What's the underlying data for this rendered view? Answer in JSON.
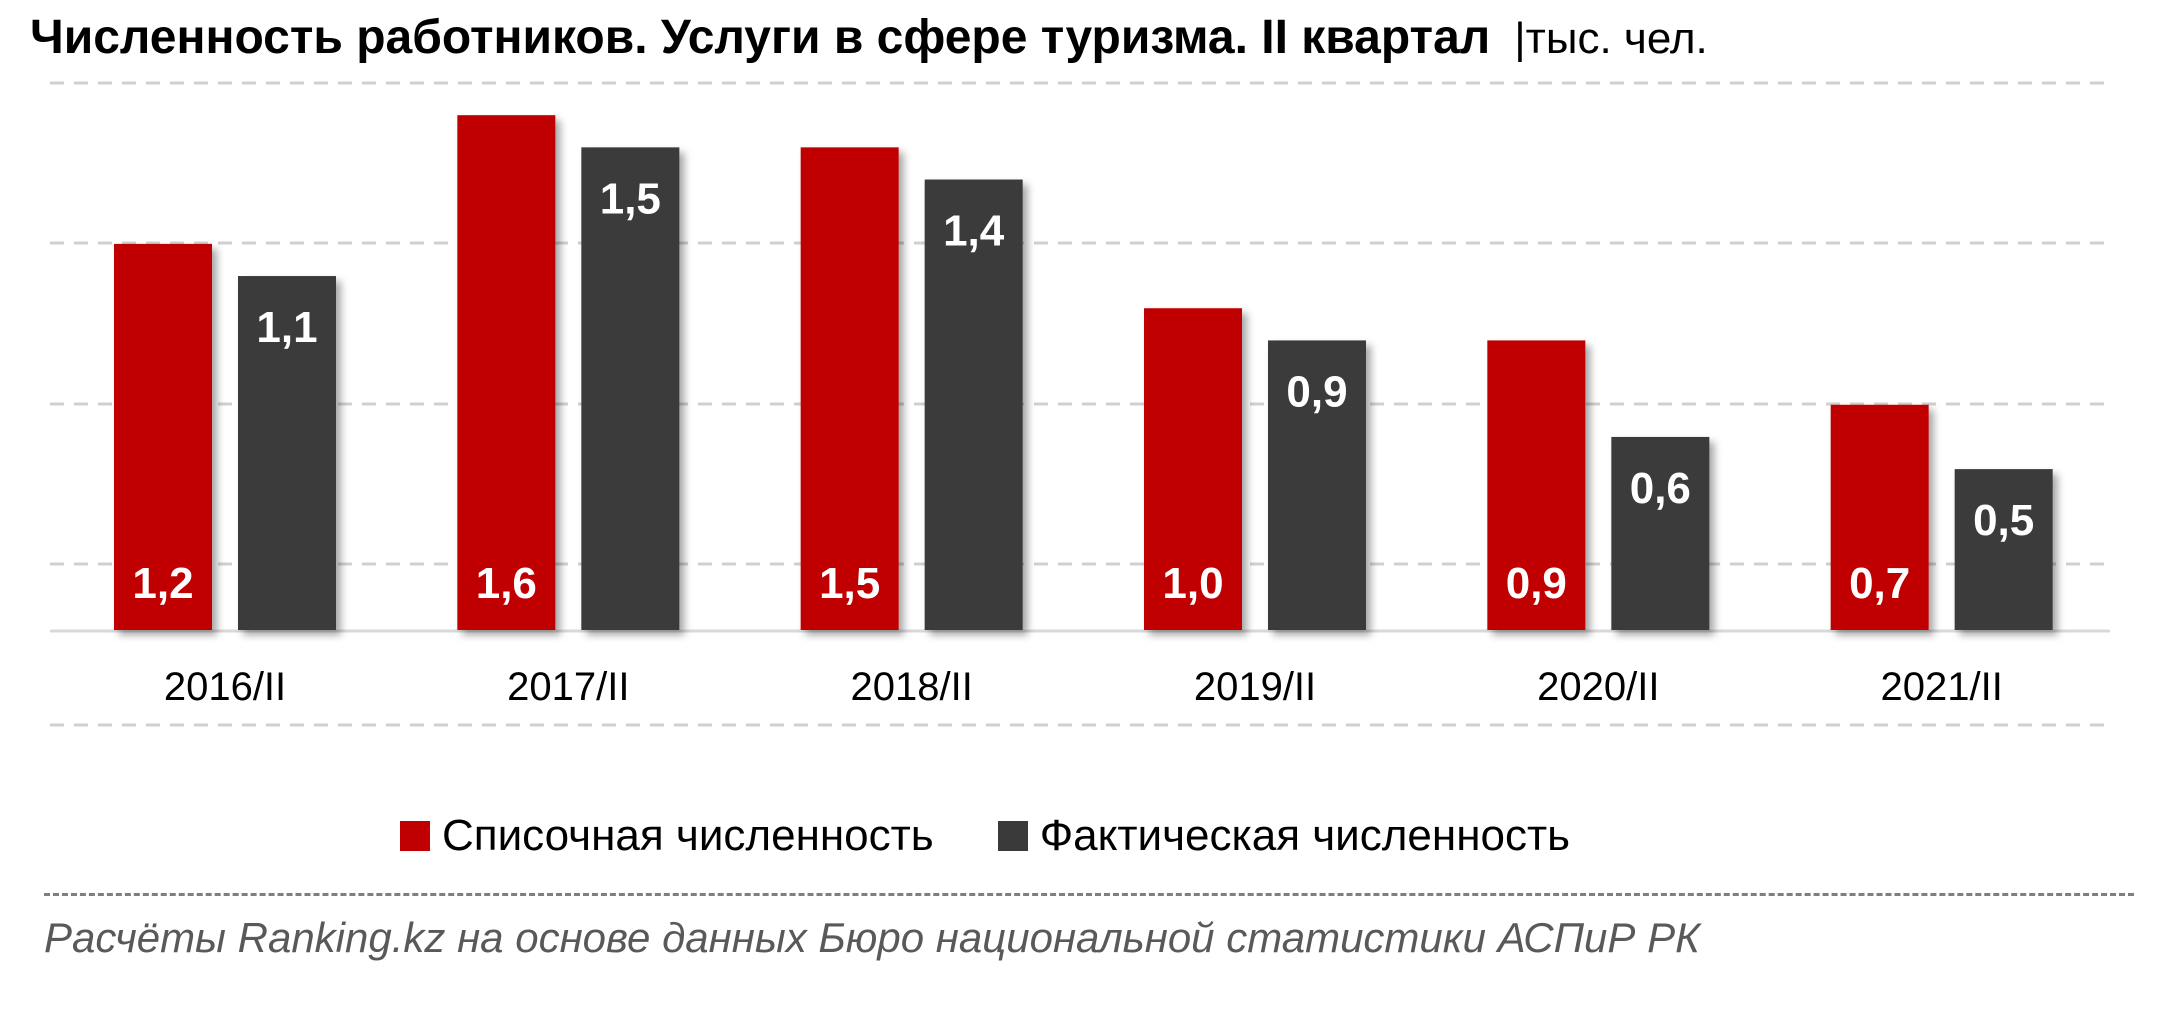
{
  "title": "Численность работников. Услуги в сфере туризма. II квартал",
  "unit": "|тыс. чел.",
  "source": "Расчёты Ranking.kz на основе данных  Бюро национальной  статистики АСПиР РК",
  "colors": {
    "series1": "#C00000",
    "series2": "#3A3A3A",
    "grid": "#D0D0D0",
    "axis": "#D9D9D9",
    "label": "#FFFFFF"
  },
  "chart_data": {
    "type": "bar",
    "categories": [
      "2016/II",
      "2017/II",
      "2018/II",
      "2019/II",
      "2020/II",
      "2021/II"
    ],
    "series": [
      {
        "name": "Списочная численность",
        "values": [
          1.2,
          1.6,
          1.5,
          1.0,
          0.9,
          0.7
        ],
        "labels": [
          "1,2",
          "1,6",
          "1,5",
          "1,0",
          "0,9",
          "0,7"
        ]
      },
      {
        "name": "Фактическая численность",
        "values": [
          1.1,
          1.5,
          1.4,
          0.9,
          0.6,
          0.5
        ],
        "labels": [
          "1,1",
          "1,5",
          "1,4",
          "0,9",
          "0,6",
          "0,5"
        ]
      }
    ],
    "ylim": [
      0,
      1.7
    ],
    "grid": true,
    "legend": "bottom",
    "data_labels": true
  }
}
